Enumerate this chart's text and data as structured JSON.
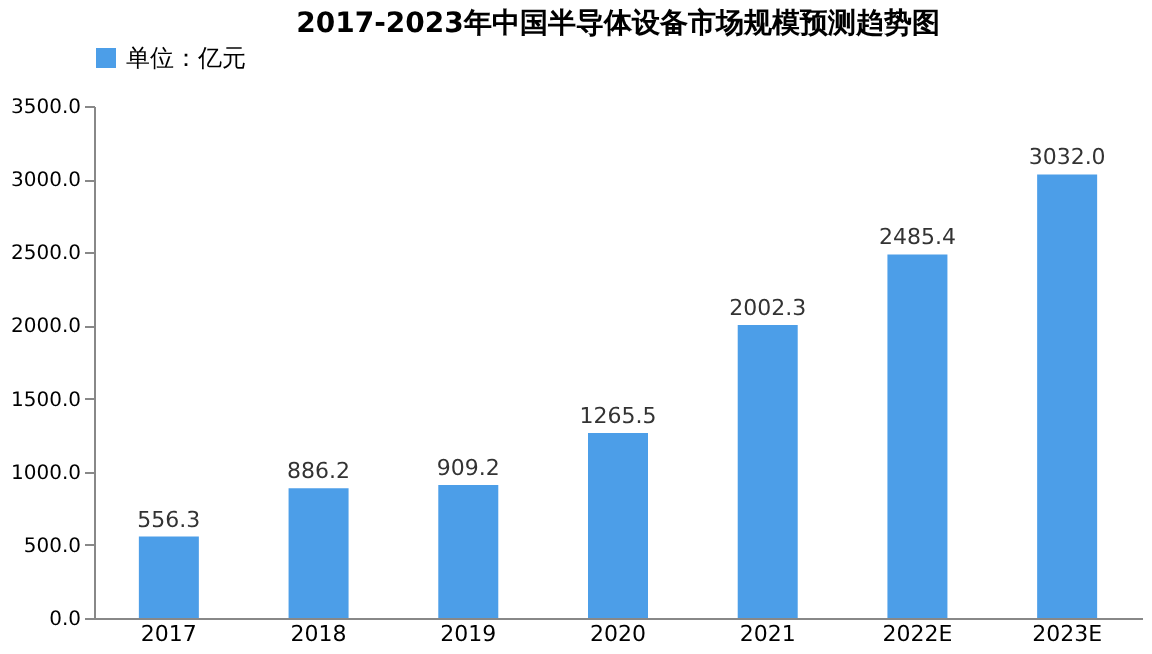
{
  "chart_data": {
    "type": "bar",
    "title": "2017-2023年中国半导体设备市场规模预测趋势图",
    "categories": [
      "2017",
      "2018",
      "2019",
      "2020",
      "2021",
      "2022E",
      "2023E"
    ],
    "series": [
      {
        "name": "单位：亿元",
        "color": "#4c9ee8",
        "values": [
          556.3,
          886.2,
          909.2,
          1265.5,
          2002.3,
          2485.4,
          3032.0
        ]
      }
    ],
    "value_labels": [
      "556.3",
      "886.2",
      "909.2",
      "1265.5",
      "2002.3",
      "2485.4",
      "3032.0"
    ],
    "ylim": [
      0,
      3500
    ],
    "yticks": [
      {
        "value": 0,
        "label": "0.0"
      },
      {
        "value": 500,
        "label": "500.0"
      },
      {
        "value": 1000,
        "label": "1000.0"
      },
      {
        "value": 1500,
        "label": "1500.0"
      },
      {
        "value": 2000,
        "label": "2000.0"
      },
      {
        "value": 2500,
        "label": "2500.0"
      },
      {
        "value": 3000,
        "label": "3000.0"
      },
      {
        "value": 3500,
        "label": "3500.0"
      }
    ],
    "grid": false,
    "legend": "top"
  }
}
